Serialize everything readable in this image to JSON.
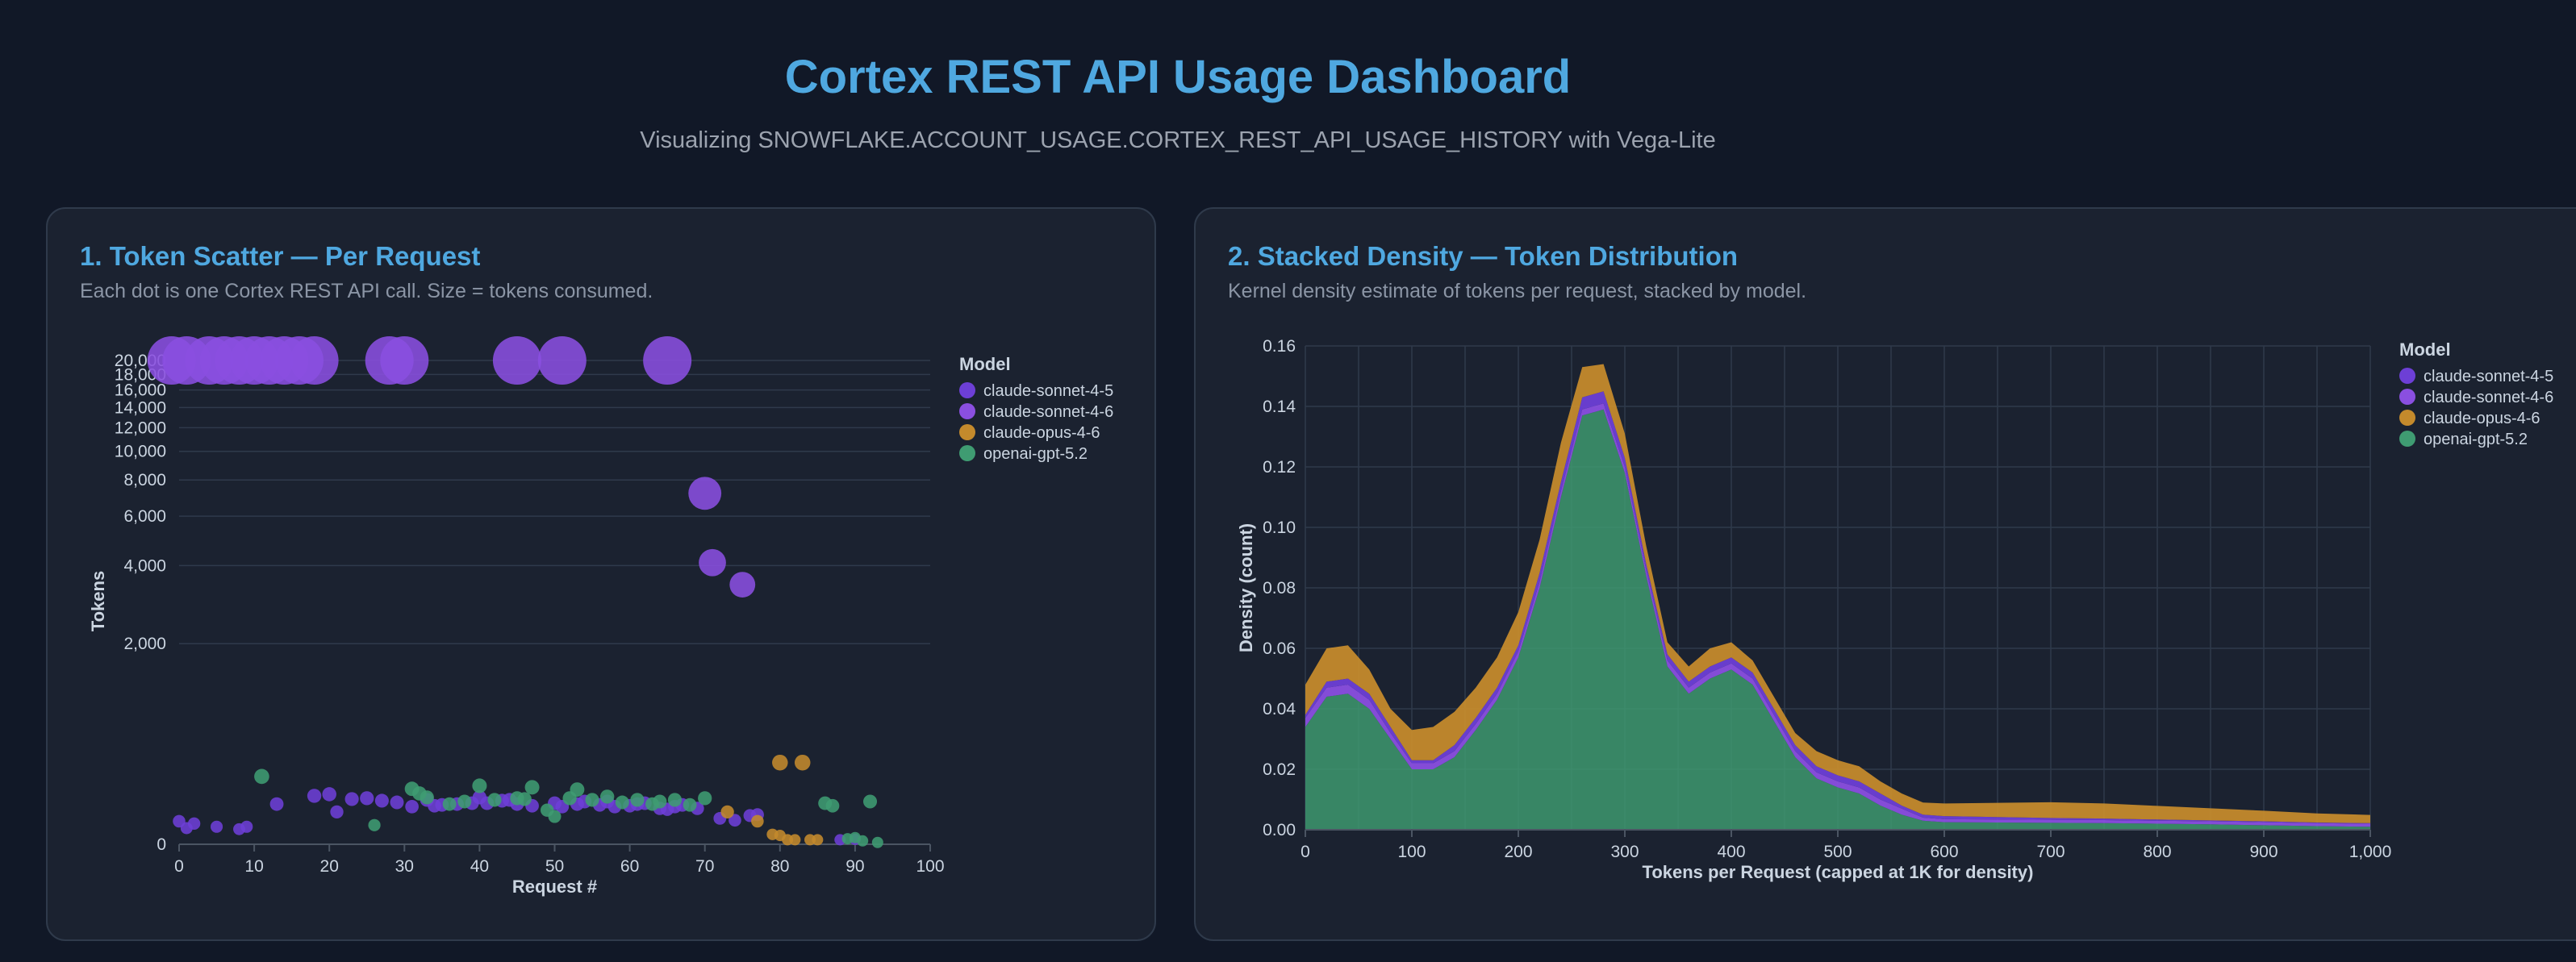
{
  "header": {
    "title": "Cortex REST API Usage Dashboard",
    "subtitle": "Visualizing SNOWFLAKE.ACCOUNT_USAGE.CORTEX_REST_API_USAGE_HISTORY with Vega-Lite"
  },
  "panels": [
    {
      "title": "1. Token Scatter — Per Request",
      "description": "Each dot is one Cortex REST API call. Size = tokens consumed."
    },
    {
      "title": "2. Stacked Density — Token Distribution",
      "description": "Kernel density estimate of tokens per request, stacked by model."
    }
  ],
  "colors": {
    "claude-sonnet-4-5": "#6d3fd6",
    "claude-sonnet-4-6": "#8a4fe0",
    "claude-opus-4-6": "#c48a2c",
    "openai-gpt-5.2": "#3f9c72"
  },
  "chart_data": [
    {
      "type": "scatter",
      "xlabel": "Request #",
      "ylabel": "Tokens",
      "xlim": [
        0,
        100
      ],
      "xticks": [
        0,
        10,
        20,
        30,
        40,
        50,
        60,
        70,
        80,
        90,
        100
      ],
      "yscale": "symlog",
      "yticks": [
        0,
        2000,
        4000,
        6000,
        8000,
        10000,
        12000,
        14000,
        16000,
        18000,
        20000
      ],
      "ytick_labels": [
        "0",
        "2,000",
        "4,000",
        "6,000",
        "8,000",
        "10,000",
        "12,000",
        "14,000",
        "16,000",
        "18,000",
        "20,000"
      ],
      "grid": true,
      "legend": {
        "title": "Model",
        "position": "right"
      },
      "series": [
        {
          "name": "claude-sonnet-4-5",
          "points": [
            [
              0,
              110
            ],
            [
              1,
              75
            ],
            [
              2,
              98
            ],
            [
              5,
              82
            ],
            [
              8,
              70
            ],
            [
              9,
              82
            ],
            [
              13,
              205
            ],
            [
              18,
              255
            ],
            [
              20,
              265
            ],
            [
              21,
              160
            ],
            [
              23,
              235
            ],
            [
              25,
              240
            ],
            [
              27,
              225
            ],
            [
              29,
              215
            ],
            [
              31,
              190
            ],
            [
              33,
              230
            ],
            [
              34,
              195
            ],
            [
              35,
              200
            ],
            [
              37,
              205
            ],
            [
              39,
              210
            ],
            [
              40,
              245
            ],
            [
              41,
              210
            ],
            [
              43,
              225
            ],
            [
              44,
              230
            ],
            [
              45,
              205
            ],
            [
              47,
              195
            ],
            [
              50,
              210
            ],
            [
              51,
              190
            ],
            [
              53,
              205
            ],
            [
              54,
              220
            ],
            [
              56,
              200
            ],
            [
              57,
              220
            ],
            [
              58,
              190
            ],
            [
              60,
              195
            ],
            [
              61,
              205
            ],
            [
              62,
              210
            ],
            [
              64,
              180
            ],
            [
              65,
              175
            ],
            [
              66,
              190
            ],
            [
              67,
              200
            ],
            [
              69,
              180
            ],
            [
              72,
              125
            ],
            [
              74,
              115
            ],
            [
              76,
              140
            ],
            [
              77,
              145
            ],
            [
              88,
              20
            ],
            [
              90,
              22
            ]
          ]
        },
        {
          "name": "claude-sonnet-4-6",
          "points": [
            [
              -1,
              20000
            ],
            [
              1,
              20000
            ],
            [
              4,
              20000
            ],
            [
              6,
              20000
            ],
            [
              8,
              20000
            ],
            [
              10,
              20000
            ],
            [
              12,
              20000
            ],
            [
              14,
              20000
            ],
            [
              16,
              20000
            ],
            [
              18,
              20000
            ],
            [
              28,
              20000
            ],
            [
              30,
              20000
            ],
            [
              45,
              20000
            ],
            [
              51,
              20000
            ],
            [
              65,
              20000
            ],
            [
              70,
              7200
            ],
            [
              71,
              4100
            ],
            [
              75,
              3400
            ]
          ]
        },
        {
          "name": "claude-opus-4-6",
          "points": [
            [
              73,
              160
            ],
            [
              77,
              110
            ],
            [
              79,
              45
            ],
            [
              80,
              40
            ],
            [
              80,
              490
            ],
            [
              81,
              20
            ],
            [
              82,
              20
            ],
            [
              83,
              490
            ],
            [
              84,
              20
            ],
            [
              85,
              20
            ]
          ]
        },
        {
          "name": "openai-gpt-5.2",
          "points": [
            [
              11,
              385
            ],
            [
              26,
              90
            ],
            [
              31,
              300
            ],
            [
              32,
              270
            ],
            [
              33,
              245
            ],
            [
              36,
              205
            ],
            [
              38,
              220
            ],
            [
              40,
              320
            ],
            [
              42,
              230
            ],
            [
              45,
              240
            ],
            [
              46,
              235
            ],
            [
              47,
              310
            ],
            [
              49,
              170
            ],
            [
              50,
              135
            ],
            [
              52,
              240
            ],
            [
              53,
              295
            ],
            [
              55,
              230
            ],
            [
              57,
              250
            ],
            [
              59,
              215
            ],
            [
              61,
              230
            ],
            [
              63,
              205
            ],
            [
              64,
              220
            ],
            [
              66,
              230
            ],
            [
              68,
              200
            ],
            [
              70,
              240
            ],
            [
              86,
              210
            ],
            [
              87,
              195
            ],
            [
              89,
              25
            ],
            [
              90,
              30
            ],
            [
              91,
              15
            ],
            [
              92,
              220
            ],
            [
              93,
              8
            ]
          ]
        }
      ]
    },
    {
      "type": "area",
      "stacked": true,
      "xlabel": "Tokens per Request (capped at 1K for density)",
      "ylabel": "Density (count)",
      "xlim": [
        0,
        1000
      ],
      "ylim": [
        0,
        0.16
      ],
      "xticks": [
        0,
        100,
        200,
        300,
        400,
        500,
        600,
        700,
        800,
        900,
        1000
      ],
      "xtick_labels": [
        "0",
        "100",
        "200",
        "300",
        "400",
        "500",
        "600",
        "700",
        "800",
        "900",
        "1,000"
      ],
      "yticks": [
        0,
        0.02,
        0.04,
        0.06,
        0.08,
        0.1,
        0.12,
        0.14,
        0.16
      ],
      "ytick_labels": [
        "0.00",
        "0.02",
        "0.04",
        "0.06",
        "0.08",
        "0.10",
        "0.12",
        "0.14",
        "0.16"
      ],
      "grid": true,
      "legend": {
        "title": "Model",
        "position": "right"
      },
      "x": [
        0,
        20,
        40,
        60,
        80,
        100,
        120,
        140,
        160,
        180,
        200,
        220,
        240,
        260,
        280,
        300,
        320,
        340,
        360,
        380,
        400,
        420,
        440,
        460,
        480,
        500,
        520,
        540,
        560,
        580,
        600,
        650,
        700,
        750,
        800,
        850,
        900,
        950,
        1000
      ],
      "series": [
        {
          "name": "openai-gpt-5.2",
          "values": [
            0.034,
            0.044,
            0.045,
            0.04,
            0.03,
            0.02,
            0.02,
            0.024,
            0.033,
            0.043,
            0.057,
            0.08,
            0.11,
            0.137,
            0.139,
            0.118,
            0.084,
            0.054,
            0.045,
            0.05,
            0.053,
            0.048,
            0.036,
            0.024,
            0.017,
            0.014,
            0.012,
            0.008,
            0.005,
            0.003,
            0.0025,
            0.0024,
            0.0023,
            0.0022,
            0.002,
            0.0018,
            0.0015,
            0.0012,
            0.001
          ]
        },
        {
          "name": "claude-sonnet-4-6",
          "values": [
            0.003,
            0.003,
            0.003,
            0.003,
            0.002,
            0.002,
            0.002,
            0.002,
            0.002,
            0.002,
            0.002,
            0.002,
            0.002,
            0.002,
            0.002,
            0.002,
            0.002,
            0.002,
            0.002,
            0.002,
            0.002,
            0.002,
            0.002,
            0.002,
            0.002,
            0.002,
            0.002,
            0.002,
            0.002,
            0.001,
            0.001,
            0.001,
            0.001,
            0.001,
            0.001,
            0.001,
            0.001,
            0.001,
            0.001
          ]
        },
        {
          "name": "claude-sonnet-4-5",
          "values": [
            0.001,
            0.002,
            0.002,
            0.002,
            0.002,
            0.001,
            0.001,
            0.002,
            0.002,
            0.002,
            0.002,
            0.003,
            0.003,
            0.004,
            0.004,
            0.003,
            0.002,
            0.002,
            0.002,
            0.002,
            0.002,
            0.002,
            0.002,
            0.002,
            0.002,
            0.002,
            0.002,
            0.002,
            0.001,
            0.001,
            0.001,
            0.0008,
            0.0006,
            0.0005,
            0.0004,
            0.0003,
            0.0003,
            0.0002,
            0.0002
          ]
        },
        {
          "name": "claude-opus-4-6",
          "values": [
            0.01,
            0.011,
            0.011,
            0.008,
            0.006,
            0.01,
            0.011,
            0.011,
            0.01,
            0.01,
            0.011,
            0.011,
            0.013,
            0.01,
            0.009,
            0.008,
            0.006,
            0.004,
            0.005,
            0.006,
            0.005,
            0.004,
            0.004,
            0.004,
            0.005,
            0.005,
            0.005,
            0.004,
            0.004,
            0.004,
            0.0042,
            0.0047,
            0.0052,
            0.005,
            0.0045,
            0.004,
            0.0035,
            0.003,
            0.0027
          ]
        }
      ]
    }
  ]
}
